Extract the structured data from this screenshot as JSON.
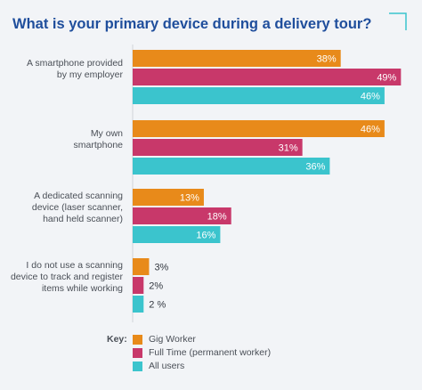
{
  "title": "What is your primary device during a delivery tour?",
  "key_label": "Key:",
  "colors": {
    "gig": "#e88a1a",
    "fulltime": "#c8386a",
    "all": "#3bc4cd",
    "title": "#1f4e9c",
    "bg": "#f2f4f7",
    "corner": "#3bc4cd"
  },
  "chart_data": {
    "type": "bar",
    "orientation": "horizontal",
    "title": "What is your primary device during a delivery tour?",
    "categories": [
      [
        "A smartphone provided",
        "by my employer"
      ],
      [
        "My own",
        "smartphone"
      ],
      [
        "A dedicated scanning",
        "device (laser scanner,",
        "hand held scanner)"
      ],
      [
        "I do not use a scanning",
        "device to track and register",
        "items while working"
      ]
    ],
    "series": [
      {
        "name": "Gig Worker",
        "values": [
          38,
          46,
          13,
          3
        ],
        "labels": [
          "38%",
          "46%",
          "13%",
          "3%"
        ]
      },
      {
        "name": "Full Time (permanent worker)",
        "values": [
          49,
          31,
          18,
          2
        ],
        "labels": [
          "49%",
          "31%",
          "18%",
          "2%"
        ]
      },
      {
        "name": "All users",
        "values": [
          46,
          36,
          16,
          2
        ],
        "labels": [
          "46%",
          "36%",
          "16%",
          "2 %"
        ]
      }
    ],
    "xlim": [
      0,
      50
    ],
    "legend": "bottom-left"
  }
}
